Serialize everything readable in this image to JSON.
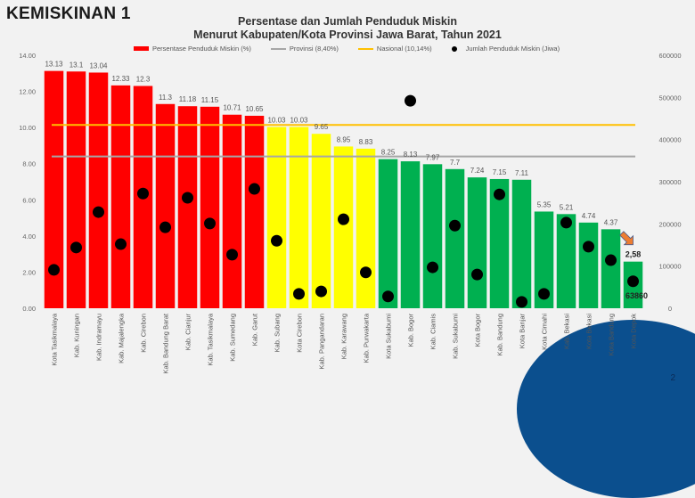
{
  "page": {
    "title": "KEMISKINAN 1",
    "slide_number": "2"
  },
  "chart_data": {
    "type": "bar",
    "title": "Persentase dan Jumlah Penduduk Miskin Menurut Kabupaten/Kota Provinsi Jawa Barat, Tahun 2021",
    "title_lines": [
      "Persentase dan Jumlah Penduduk Miskin",
      "Menurut Kabupaten/Kota Provinsi Jawa Barat, Tahun 2021"
    ],
    "categories": [
      "Kota Tasikmalaya",
      "Kab. Kuningan",
      "Kab. Indramayu",
      "Kab. Majalengka",
      "Kab. Cirebon",
      "Kab. Bandung Barat",
      "Kab. Cianjur",
      "Kab. Tasikmalaya",
      "Kab. Sumedang",
      "Kab. Garut",
      "Kab. Subang",
      "Kota Cirebon",
      "Kab. Pangandaran",
      "Kab. Karawang",
      "Kab. Purwakarta",
      "Kota Sukabumi",
      "Kab. Bogor",
      "Kab. Ciamis",
      "Kab. Sukabumi",
      "Kota Bogor",
      "Kab. Bandung",
      "Kota Banjar",
      "Kota Cimahi",
      "Kab. Bekasi",
      "Kota Bekasi",
      "Kota Bandung",
      "Kota Depok"
    ],
    "series": [
      {
        "name": "Persentase Penduduk Miskin (%)",
        "type": "bar",
        "axis": "left",
        "values": [
          13.13,
          13.1,
          13.04,
          12.33,
          12.3,
          11.3,
          11.18,
          11.15,
          10.71,
          10.65,
          10.03,
          10.03,
          9.65,
          8.95,
          8.83,
          8.25,
          8.13,
          7.97,
          7.7,
          7.24,
          7.15,
          7.11,
          5.35,
          5.21,
          4.74,
          4.37,
          2.58
        ],
        "labels": [
          "13.13",
          "13.1",
          "13.04",
          "12.33",
          "12.3",
          "11.3",
          "11.18",
          "11.15",
          "10.71",
          "10.65",
          "10.03",
          "10.03",
          "9.65",
          "8.95",
          "8.83",
          "8.25",
          "8.13",
          "7.97",
          "7.7",
          "7.24",
          "7.15",
          "7.11",
          "5.35",
          "5.21",
          "4.74",
          "4.37",
          "2,58"
        ]
      },
      {
        "name": "Jumlah Penduduk Miskin (Jiwa)",
        "type": "scatter",
        "axis": "right",
        "values": [
          91000,
          144000,
          228000,
          152000,
          272000,
          192000,
          262000,
          201000,
          127000,
          283000,
          160000,
          34000,
          40000,
          211000,
          85000,
          28000,
          492000,
          97000,
          196000,
          80000,
          270000,
          15000,
          34000,
          203000,
          146000,
          114000,
          63860
        ],
        "annotated": {
          "index": 26,
          "label": "63860"
        }
      }
    ],
    "reference_lines": [
      {
        "name": "Provinsi (8,40%)",
        "value": 8.4,
        "color": "#a6a6a6"
      },
      {
        "name": "Nasional (10,14%)",
        "value": 10.14,
        "color": "#ffc000"
      }
    ],
    "bar_color_groups": [
      {
        "from": 0,
        "to": 9,
        "color": "#ff0000"
      },
      {
        "from": 10,
        "to": 14,
        "color": "#ffff00"
      },
      {
        "from": 15,
        "to": 26,
        "color": "#00b050"
      }
    ],
    "legend": [
      {
        "label": "Persentase Penduduk Miskin (%)",
        "kind": "bar",
        "color": "#ff0000"
      },
      {
        "label": "Provinsi (8,40%)",
        "kind": "line",
        "color": "#a6a6a6"
      },
      {
        "label": "Nasional (10,14%)",
        "kind": "line",
        "color": "#ffc000"
      },
      {
        "label": "Jumlah Penduduk Miskin (Jiwa)",
        "kind": "dot",
        "color": "#000000"
      }
    ],
    "legend_position": "top",
    "y_left": {
      "ylim": [
        0,
        14
      ],
      "ticks": [
        "0.00",
        "2.00",
        "4.00",
        "6.00",
        "8.00",
        "10.00",
        "12.00",
        "14.00"
      ]
    },
    "y_right": {
      "ylim": [
        0,
        600000
      ],
      "ticks": [
        "0",
        "100000",
        "200000",
        "300000",
        "400000",
        "500000",
        "600000"
      ]
    },
    "highlight": {
      "index": 26,
      "marker": "orange-arrow",
      "color": "#ed7d31"
    },
    "grid": false,
    "xlabel": "",
    "ylabel": ""
  }
}
